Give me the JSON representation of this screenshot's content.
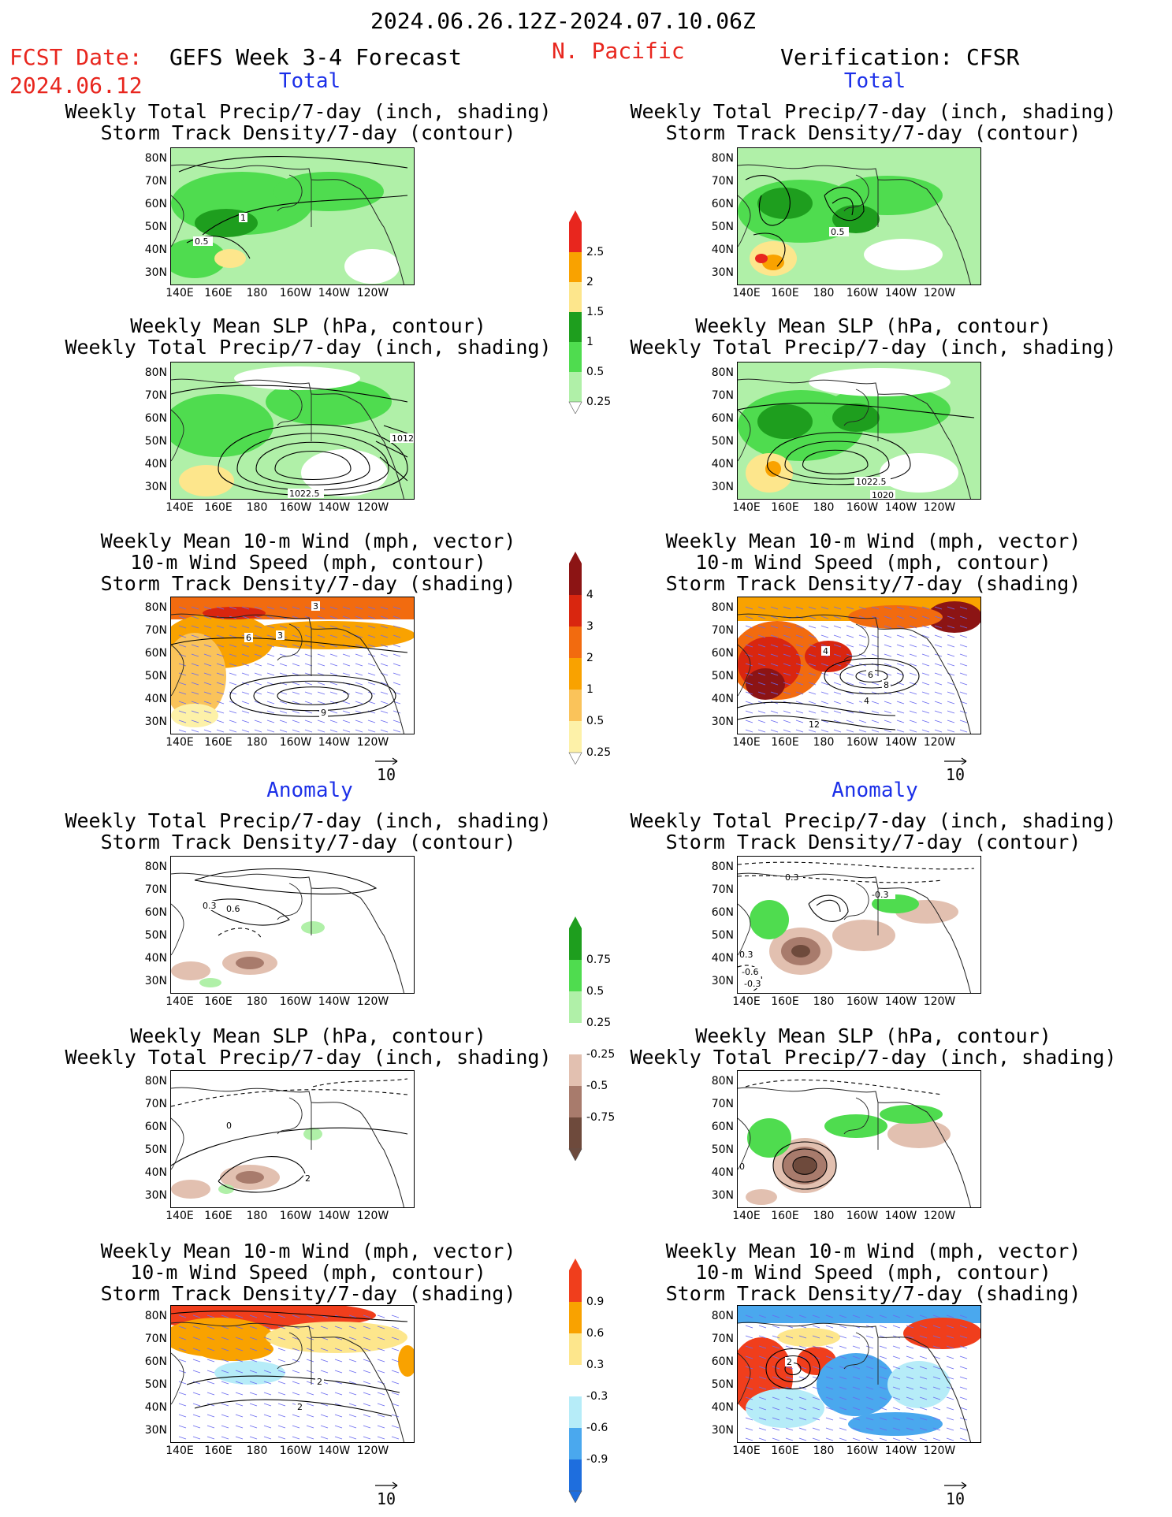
{
  "header": {
    "date_range": "2024.06.26.12Z-2024.07.10.06Z",
    "fcst_label": "FCST Date:",
    "fcst_date": "2024.06.12",
    "forecast_name": "GEFS Week 3-4 Forecast",
    "region": "N. Pacific",
    "verification": "Verification: CFSR"
  },
  "sections": {
    "total": "Total",
    "anomaly": "Anomaly"
  },
  "panel_titles": {
    "precip_storm": [
      "Weekly Total Precip/7-day (inch, shading)",
      "Storm Track Density/7-day (contour)"
    ],
    "slp_precip": [
      "Weekly Mean SLP (hPa, contour)",
      "Weekly Total Precip/7-day (inch, shading)"
    ],
    "wind_storm": [
      "Weekly Mean 10-m Wind (mph, vector)",
      "10-m Wind Speed (mph, contour)",
      "Storm Track Density/7-day (shading)"
    ]
  },
  "axes": {
    "lat": [
      "80N",
      "70N",
      "60N",
      "50N",
      "40N",
      "30N"
    ],
    "lon": [
      "140E",
      "160E",
      "180",
      "160W",
      "140W",
      "120W"
    ]
  },
  "reference_vector": "10",
  "colorbars": {
    "precip_total": {
      "labels": [
        "2.5",
        "2",
        "1.5",
        "1",
        "0.5",
        "0.25"
      ],
      "colors": [
        "#e8261e",
        "#f9a200",
        "#fde68c",
        "#1e9e1e",
        "#4fdc4f",
        "#b0f0a8"
      ]
    },
    "storm_total": {
      "labels": [
        "4",
        "3",
        "2",
        "1",
        "0.5",
        "0.25"
      ],
      "colors": [
        "#8c1414",
        "#d9260f",
        "#f26b0f",
        "#f9a200",
        "#fac35a",
        "#fdf1a8"
      ]
    },
    "precip_anom": {
      "labels": [
        "0.75",
        "0.5",
        "0.25",
        "-0.25",
        "-0.5",
        "-0.75"
      ],
      "colors": [
        "#1e9e1e",
        "#4fdc4f",
        "#b0f0a8",
        "#ffffff",
        "#e2c0b0",
        "#a87b6c",
        "#6e4a3c"
      ]
    },
    "storm_anom": {
      "labels": [
        "0.9",
        "0.6",
        "0.3",
        "-0.3",
        "-0.6",
        "-0.9"
      ],
      "colors": [
        "#f03e1c",
        "#f9a200",
        "#fde68c",
        "#ffffff",
        "#b6ecf8",
        "#4aa8ee",
        "#1e6ede"
      ]
    }
  },
  "contour_labels": {
    "fc_total_precip": [
      "1",
      "0.5"
    ],
    "vf_total_precip": [
      "0.5"
    ],
    "fc_total_slp": [
      "1012",
      "1022.5"
    ],
    "vf_total_slp": [
      "1022.5",
      "1020"
    ],
    "fc_total_wind": [
      "3",
      "6",
      "3",
      "9"
    ],
    "vf_total_wind": [
      "4",
      "6",
      "8",
      "4",
      "12"
    ],
    "fc_anom_precip": [
      "0.3",
      "0.6"
    ],
    "vf_anom_precip": [
      "0.3",
      "-0.3",
      "0.3",
      "-0.6",
      "-0.3"
    ],
    "fc_anom_slp": [
      "0",
      "2"
    ],
    "vf_anom_slp": [
      "0"
    ],
    "fc_anom_wind": [
      "2",
      "2"
    ],
    "vf_anom_wind": [
      "2"
    ]
  }
}
